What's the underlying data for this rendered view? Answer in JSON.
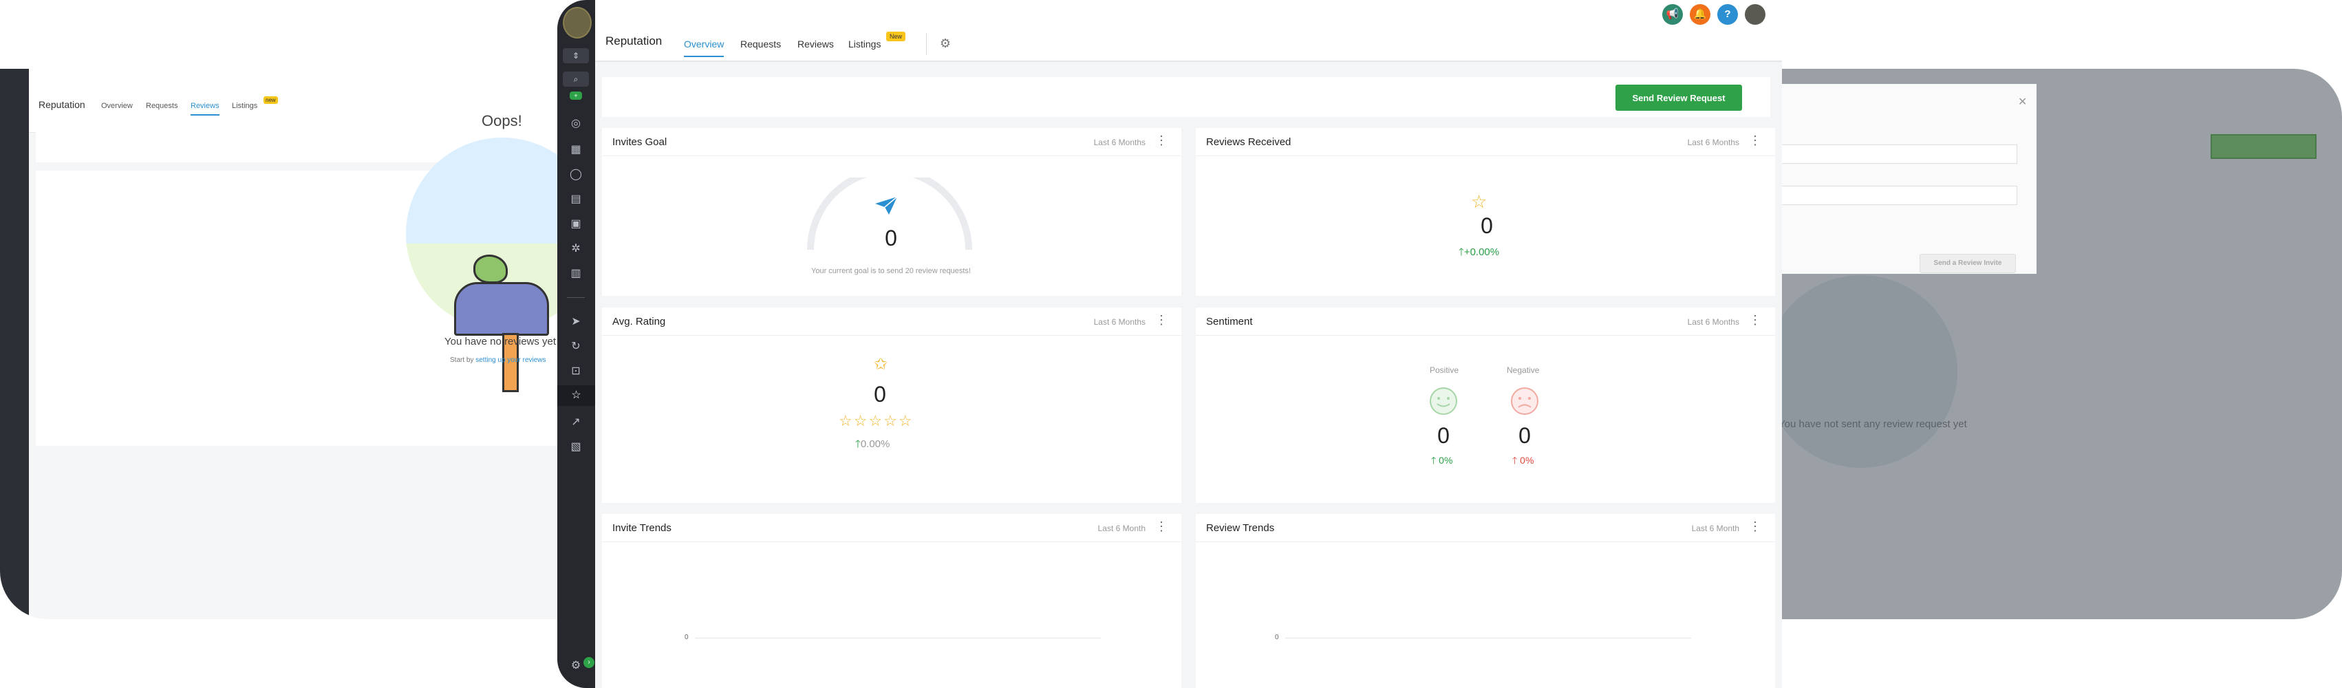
{
  "left_shot": {
    "title": "Reputation",
    "tabs": [
      "Overview",
      "Requests",
      "Reviews",
      "Listings"
    ],
    "new_badge": "new",
    "oops": "Oops!",
    "empty_title": "You have no reviews yet",
    "empty_sub_prefix": "Start by ",
    "empty_sub_link": "setting up your reviews"
  },
  "right_shot": {
    "send_button": "Send a Review Invite",
    "empty_title": "You have not sent any review request yet"
  },
  "main": {
    "title": "Reputation",
    "tabs": [
      {
        "label": "Overview",
        "active": true
      },
      {
        "label": "Requests",
        "active": false
      },
      {
        "label": "Reviews",
        "active": false
      },
      {
        "label": "Listings",
        "active": false
      }
    ],
    "new_badge": "New",
    "header_icons": [
      "megaphone-icon",
      "bell-icon",
      "help-icon",
      "avatar"
    ],
    "header_colors": {
      "megaphone": "#2f8a6f",
      "bell": "#f0711a",
      "help": "#2b8fd1"
    },
    "send_review_request": "Send Review Request",
    "cards": {
      "invites_goal": {
        "title": "Invites Goal",
        "period": "Last 6 Months",
        "value": "0",
        "note": "Your current goal is to send 20 review requests!"
      },
      "reviews_received": {
        "title": "Reviews Received",
        "period": "Last 6 Months",
        "value": "0",
        "change": "+0.00%"
      },
      "avg_rating": {
        "title": "Avg. Rating",
        "period": "Last 6 Months",
        "value": "0",
        "stars": 5,
        "change": "0.00%"
      },
      "sentiment": {
        "title": "Sentiment",
        "period": "Last 6 Months",
        "positive_label": "Positive",
        "positive_value": "0",
        "positive_change": "0%",
        "negative_label": "Negative",
        "negative_value": "0",
        "negative_change": "0%"
      },
      "invite_trends": {
        "title": "Invite Trends",
        "period": "Last 6 Month",
        "axis_zero": "0"
      },
      "review_trends": {
        "title": "Review Trends",
        "period": "Last 6 Month",
        "axis_zero": "0"
      }
    }
  }
}
